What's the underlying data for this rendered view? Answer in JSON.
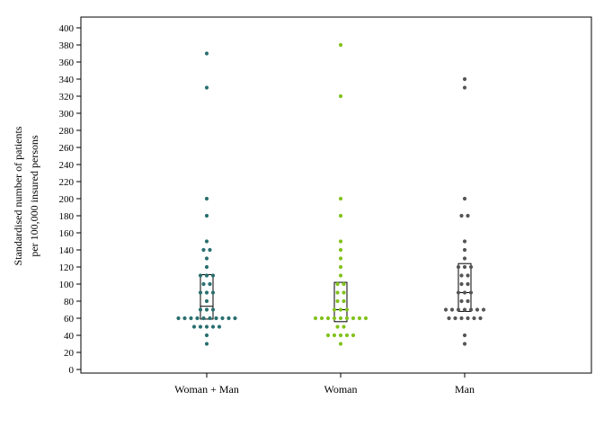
{
  "chart_data": {
    "type": "scatter",
    "subtype": "dot-plot-with-boxplot",
    "title": "",
    "xlabel": "",
    "ylabel_lines": [
      "Standardised number of patients",
      "per 100,000 insured persons"
    ],
    "ylim": [
      0,
      400
    ],
    "yticks": [
      0,
      20,
      40,
      60,
      80,
      100,
      120,
      140,
      160,
      180,
      200,
      220,
      240,
      260,
      280,
      300,
      320,
      340,
      360,
      380,
      400
    ],
    "grid": false,
    "legend": "none",
    "categories": [
      "Woman + Man",
      "Woman",
      "Man"
    ],
    "series": [
      {
        "category": "Woman + Man",
        "color": "#2a6f6f",
        "box": {
          "q1": 59,
          "median": 74,
          "q3": 111
        },
        "points": [
          30,
          40,
          50,
          50,
          50,
          50,
          50,
          60,
          60,
          60,
          60,
          60,
          60,
          60,
          60,
          60,
          60,
          70,
          70,
          70,
          80,
          90,
          90,
          90,
          100,
          100,
          110,
          110,
          110,
          120,
          130,
          140,
          140,
          150,
          180,
          200,
          330,
          370
        ]
      },
      {
        "category": "Woman",
        "color": "#82c21c",
        "box": {
          "q1": 56,
          "median": 70,
          "q3": 102
        },
        "points": [
          30,
          40,
          40,
          40,
          40,
          40,
          50,
          50,
          60,
          60,
          60,
          60,
          60,
          60,
          60,
          60,
          60,
          70,
          70,
          70,
          80,
          80,
          90,
          90,
          100,
          100,
          110,
          120,
          130,
          140,
          150,
          180,
          200,
          320,
          380
        ]
      },
      {
        "category": "Man",
        "color": "#555555",
        "box": {
          "q1": 68,
          "median": 90,
          "q3": 124
        },
        "points": [
          30,
          40,
          60,
          60,
          60,
          60,
          60,
          60,
          70,
          70,
          70,
          70,
          70,
          70,
          70,
          80,
          80,
          90,
          90,
          90,
          100,
          100,
          110,
          110,
          120,
          120,
          120,
          130,
          140,
          150,
          180,
          180,
          200,
          330,
          340
        ]
      }
    ]
  }
}
